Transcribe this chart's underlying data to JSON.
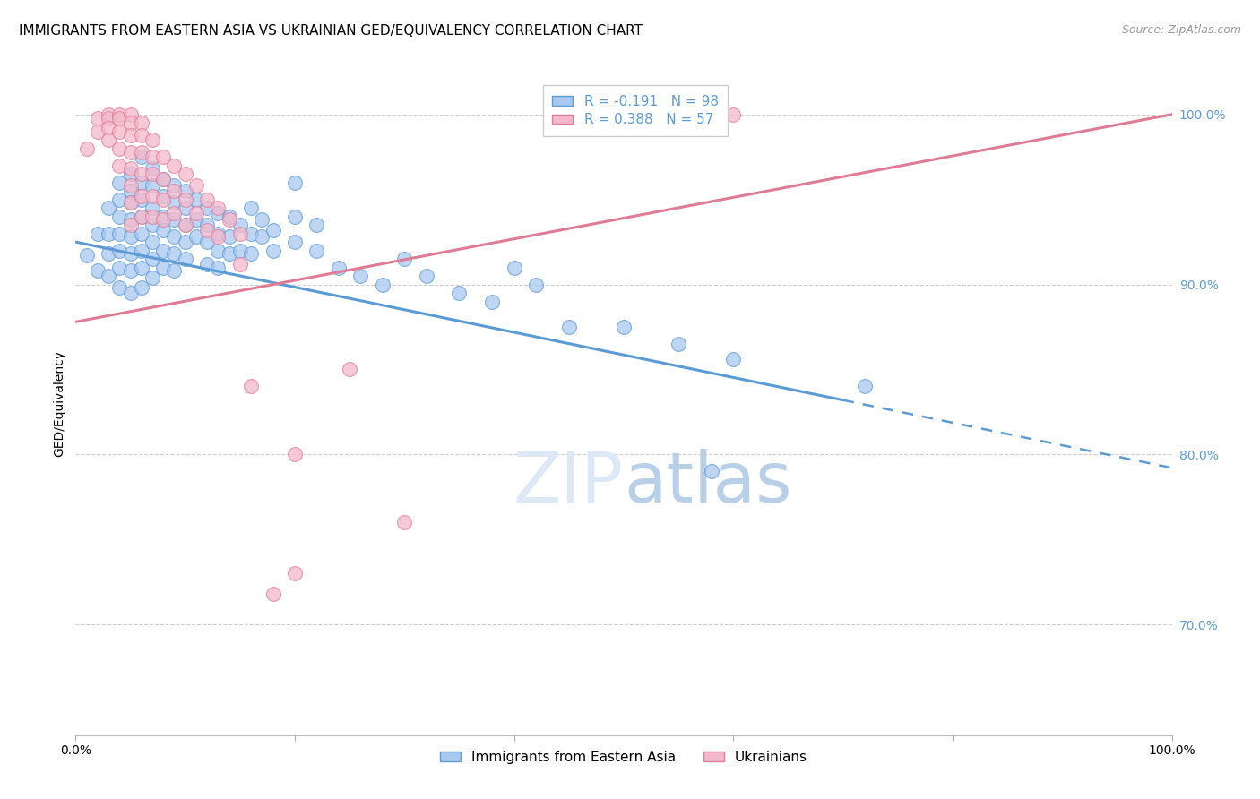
{
  "title": "IMMIGRANTS FROM EASTERN ASIA VS UKRAINIAN GED/EQUIVALENCY CORRELATION CHART",
  "source": "Source: ZipAtlas.com",
  "ylabel": "GED/Equivalency",
  "legend_label1": "Immigrants from Eastern Asia",
  "legend_label2": "Ukrainians",
  "r_blue": -0.191,
  "n_blue": 98,
  "r_pink": 0.388,
  "n_pink": 57,
  "blue_color": "#A8C8F0",
  "pink_color": "#F4B8CC",
  "blue_line_color": "#5B9BD5",
  "pink_line_color": "#E07B95",
  "blue_scatter": [
    [
      0.01,
      0.917
    ],
    [
      0.02,
      0.93
    ],
    [
      0.02,
      0.908
    ],
    [
      0.03,
      0.945
    ],
    [
      0.03,
      0.93
    ],
    [
      0.03,
      0.918
    ],
    [
      0.03,
      0.905
    ],
    [
      0.04,
      0.96
    ],
    [
      0.04,
      0.95
    ],
    [
      0.04,
      0.94
    ],
    [
      0.04,
      0.93
    ],
    [
      0.04,
      0.92
    ],
    [
      0.04,
      0.91
    ],
    [
      0.04,
      0.898
    ],
    [
      0.05,
      0.965
    ],
    [
      0.05,
      0.955
    ],
    [
      0.05,
      0.948
    ],
    [
      0.05,
      0.938
    ],
    [
      0.05,
      0.928
    ],
    [
      0.05,
      0.918
    ],
    [
      0.05,
      0.908
    ],
    [
      0.05,
      0.895
    ],
    [
      0.06,
      0.975
    ],
    [
      0.06,
      0.96
    ],
    [
      0.06,
      0.95
    ],
    [
      0.06,
      0.94
    ],
    [
      0.06,
      0.93
    ],
    [
      0.06,
      0.92
    ],
    [
      0.06,
      0.91
    ],
    [
      0.06,
      0.898
    ],
    [
      0.07,
      0.968
    ],
    [
      0.07,
      0.958
    ],
    [
      0.07,
      0.945
    ],
    [
      0.07,
      0.935
    ],
    [
      0.07,
      0.925
    ],
    [
      0.07,
      0.915
    ],
    [
      0.07,
      0.904
    ],
    [
      0.08,
      0.962
    ],
    [
      0.08,
      0.952
    ],
    [
      0.08,
      0.94
    ],
    [
      0.08,
      0.932
    ],
    [
      0.08,
      0.92
    ],
    [
      0.08,
      0.91
    ],
    [
      0.09,
      0.958
    ],
    [
      0.09,
      0.948
    ],
    [
      0.09,
      0.938
    ],
    [
      0.09,
      0.928
    ],
    [
      0.09,
      0.918
    ],
    [
      0.09,
      0.908
    ],
    [
      0.1,
      0.955
    ],
    [
      0.1,
      0.945
    ],
    [
      0.1,
      0.935
    ],
    [
      0.1,
      0.925
    ],
    [
      0.1,
      0.915
    ],
    [
      0.11,
      0.95
    ],
    [
      0.11,
      0.938
    ],
    [
      0.11,
      0.928
    ],
    [
      0.12,
      0.945
    ],
    [
      0.12,
      0.935
    ],
    [
      0.12,
      0.925
    ],
    [
      0.12,
      0.912
    ],
    [
      0.13,
      0.942
    ],
    [
      0.13,
      0.93
    ],
    [
      0.13,
      0.92
    ],
    [
      0.13,
      0.91
    ],
    [
      0.14,
      0.94
    ],
    [
      0.14,
      0.928
    ],
    [
      0.14,
      0.918
    ],
    [
      0.15,
      0.935
    ],
    [
      0.15,
      0.92
    ],
    [
      0.16,
      0.945
    ],
    [
      0.16,
      0.93
    ],
    [
      0.16,
      0.918
    ],
    [
      0.17,
      0.938
    ],
    [
      0.17,
      0.928
    ],
    [
      0.18,
      0.932
    ],
    [
      0.18,
      0.92
    ],
    [
      0.2,
      0.96
    ],
    [
      0.2,
      0.94
    ],
    [
      0.2,
      0.925
    ],
    [
      0.22,
      0.935
    ],
    [
      0.22,
      0.92
    ],
    [
      0.24,
      0.91
    ],
    [
      0.26,
      0.905
    ],
    [
      0.28,
      0.9
    ],
    [
      0.3,
      0.915
    ],
    [
      0.32,
      0.905
    ],
    [
      0.35,
      0.895
    ],
    [
      0.38,
      0.89
    ],
    [
      0.4,
      0.91
    ],
    [
      0.42,
      0.9
    ],
    [
      0.45,
      0.875
    ],
    [
      0.5,
      0.875
    ],
    [
      0.55,
      0.865
    ],
    [
      0.58,
      0.79
    ],
    [
      0.6,
      0.856
    ],
    [
      0.72,
      0.84
    ]
  ],
  "pink_scatter": [
    [
      0.01,
      0.98
    ],
    [
      0.02,
      0.998
    ],
    [
      0.02,
      0.99
    ],
    [
      0.03,
      1.0
    ],
    [
      0.03,
      0.998
    ],
    [
      0.03,
      0.992
    ],
    [
      0.03,
      0.985
    ],
    [
      0.04,
      1.0
    ],
    [
      0.04,
      0.998
    ],
    [
      0.04,
      0.99
    ],
    [
      0.04,
      0.98
    ],
    [
      0.04,
      0.97
    ],
    [
      0.05,
      1.0
    ],
    [
      0.05,
      0.995
    ],
    [
      0.05,
      0.988
    ],
    [
      0.05,
      0.978
    ],
    [
      0.05,
      0.968
    ],
    [
      0.05,
      0.958
    ],
    [
      0.05,
      0.948
    ],
    [
      0.05,
      0.935
    ],
    [
      0.06,
      0.995
    ],
    [
      0.06,
      0.988
    ],
    [
      0.06,
      0.978
    ],
    [
      0.06,
      0.965
    ],
    [
      0.06,
      0.952
    ],
    [
      0.06,
      0.94
    ],
    [
      0.07,
      0.985
    ],
    [
      0.07,
      0.975
    ],
    [
      0.07,
      0.965
    ],
    [
      0.07,
      0.952
    ],
    [
      0.07,
      0.94
    ],
    [
      0.08,
      0.975
    ],
    [
      0.08,
      0.962
    ],
    [
      0.08,
      0.95
    ],
    [
      0.08,
      0.938
    ],
    [
      0.09,
      0.97
    ],
    [
      0.09,
      0.955
    ],
    [
      0.09,
      0.942
    ],
    [
      0.1,
      0.965
    ],
    [
      0.1,
      0.95
    ],
    [
      0.1,
      0.935
    ],
    [
      0.11,
      0.958
    ],
    [
      0.11,
      0.942
    ],
    [
      0.12,
      0.95
    ],
    [
      0.12,
      0.932
    ],
    [
      0.13,
      0.945
    ],
    [
      0.13,
      0.928
    ],
    [
      0.14,
      0.938
    ],
    [
      0.15,
      0.93
    ],
    [
      0.15,
      0.912
    ],
    [
      0.16,
      0.84
    ],
    [
      0.18,
      0.718
    ],
    [
      0.2,
      0.73
    ],
    [
      0.2,
      0.8
    ],
    [
      0.25,
      0.85
    ],
    [
      0.3,
      0.76
    ],
    [
      0.6,
      1.0
    ]
  ],
  "blue_line": [
    0.0,
    0.925,
    0.7,
    0.832
  ],
  "pink_line": [
    0.0,
    0.878,
    1.0,
    1.0
  ],
  "xlim": [
    0.0,
    1.0
  ],
  "ylim": [
    0.635,
    1.025
  ],
  "yticks": [
    0.7,
    0.8,
    0.9,
    1.0
  ],
  "ytick_labels": [
    "70.0%",
    "80.0%",
    "90.0%",
    "100.0%"
  ],
  "xtick_positions": [
    0.0,
    0.2,
    0.4,
    0.6,
    0.8,
    1.0
  ],
  "background_color": "#ffffff",
  "grid_color": "#cccccc",
  "title_fontsize": 11,
  "axis_label_fontsize": 10,
  "tick_fontsize": 10,
  "legend_fontsize": 11,
  "watermark_color": "#dce8f5",
  "watermark_fontsize": 56
}
